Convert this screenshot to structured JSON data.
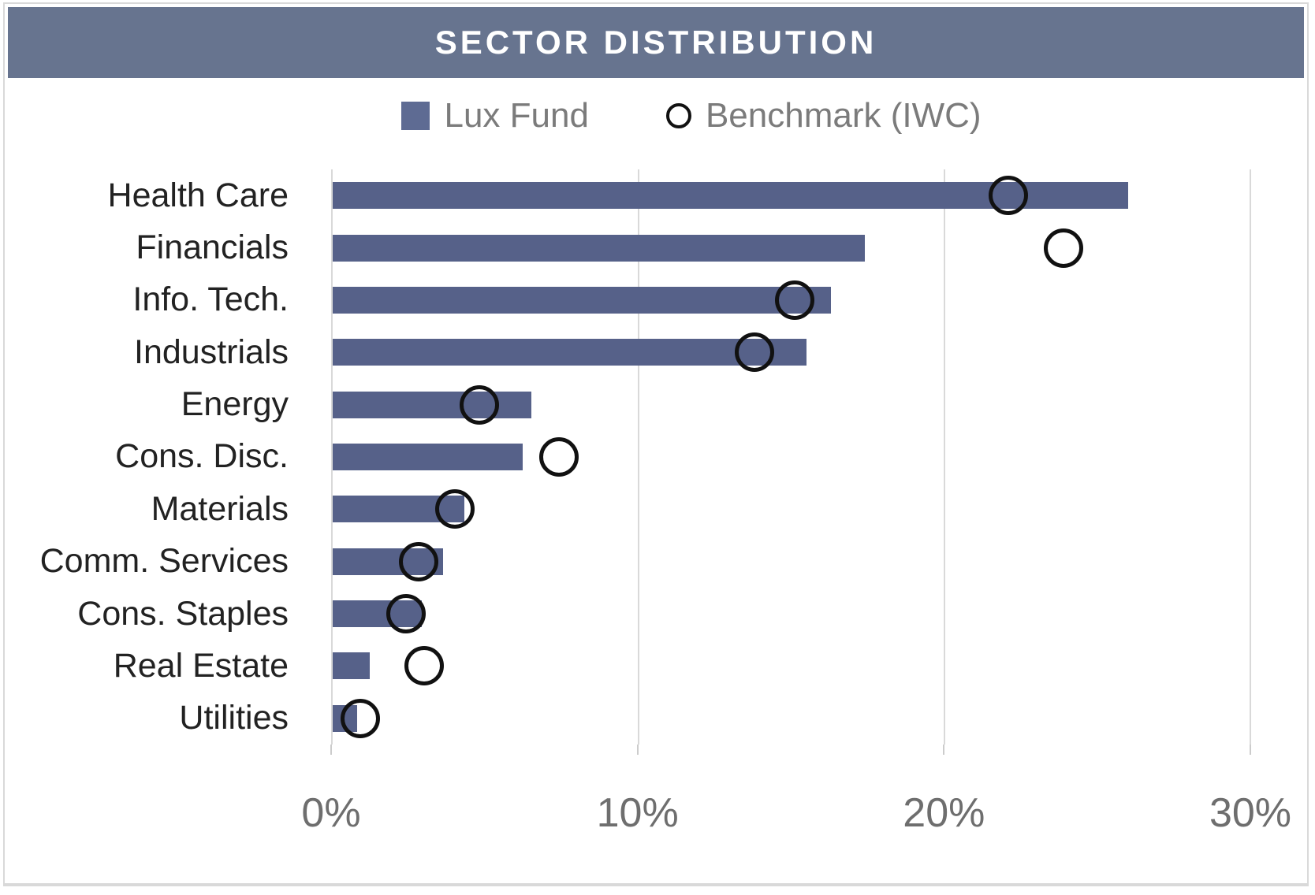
{
  "header": {
    "title": "SECTOR DISTRIBUTION"
  },
  "legend": {
    "fund_label": "Lux Fund",
    "benchmark_label": "Benchmark (IWC)"
  },
  "colors": {
    "header_bg": "#67748f",
    "bar": "#566189",
    "legend_swatch": "#5e6b93",
    "marker_stroke": "#111111",
    "grid": "#d9d9d9",
    "axis_text": "#6e6e6e",
    "category_text": "#222222",
    "legend_text": "#7b7b7b",
    "card_border": "#d9d9d9",
    "title_text": "#ffffff"
  },
  "chart_data": {
    "type": "bar",
    "orientation": "horizontal",
    "title": "SECTOR DISTRIBUTION",
    "xlabel": "",
    "ylabel": "",
    "xlim": [
      0,
      30
    ],
    "x_tick_values": [
      0,
      10,
      20,
      30
    ],
    "x_ticks": [
      "0%",
      "10%",
      "20%",
      "30%"
    ],
    "grid": "vertical",
    "legend_position": "top",
    "categories": [
      "Health Care",
      "Financials",
      "Info. Tech.",
      "Industrials",
      "Energy",
      "Cons. Disc.",
      "Materials",
      "Comm. Services",
      "Cons. Staples",
      "Real Estate",
      "Utilities"
    ],
    "series": [
      {
        "name": "Lux Fund",
        "marker": "bar",
        "values": [
          26.0,
          17.4,
          16.3,
          15.5,
          6.5,
          6.2,
          4.3,
          3.6,
          2.9,
          1.2,
          0.8
        ]
      },
      {
        "name": "Benchmark (IWC)",
        "marker": "open-circle",
        "values": [
          22.1,
          23.9,
          15.1,
          13.8,
          4.8,
          7.4,
          4.0,
          2.8,
          2.4,
          3.0,
          0.9
        ]
      }
    ]
  }
}
